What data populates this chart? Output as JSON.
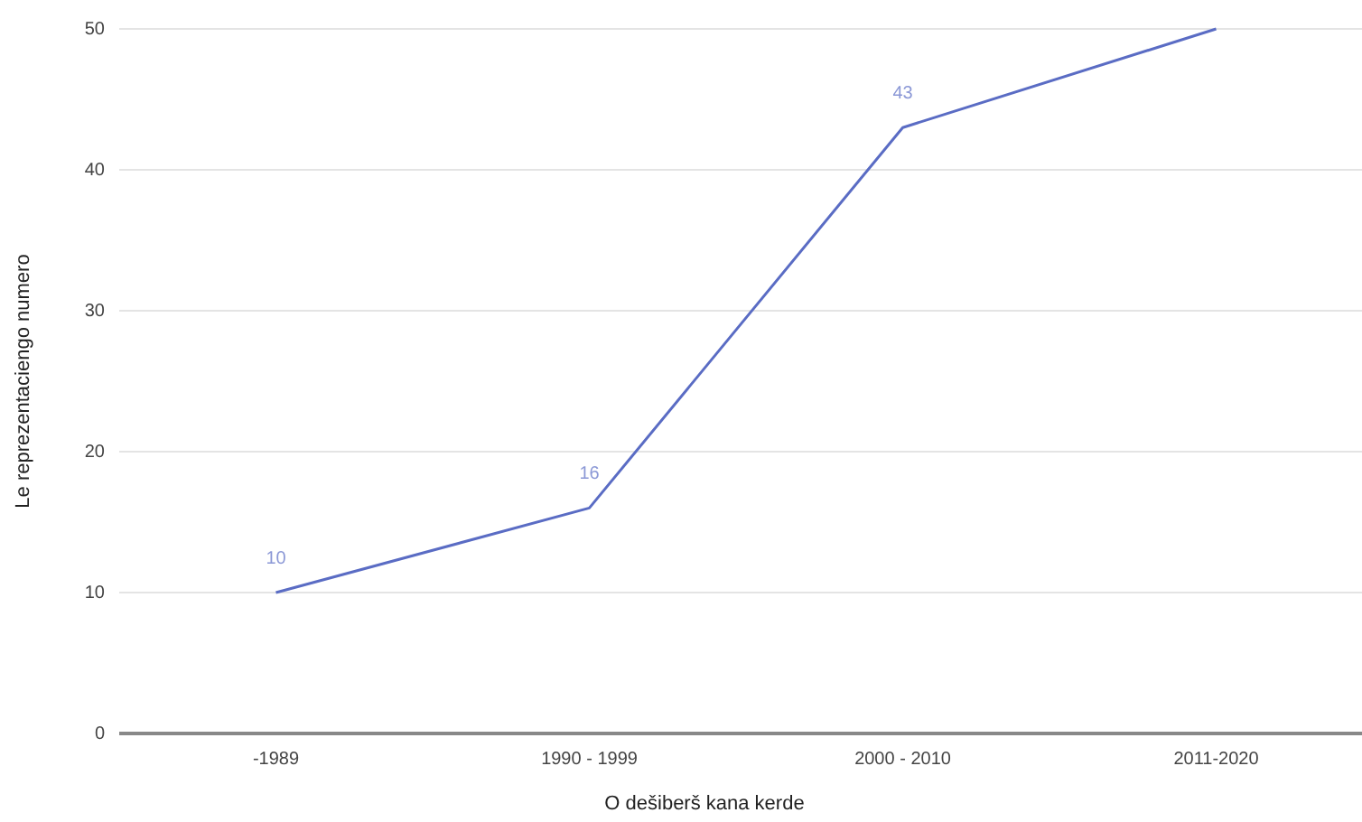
{
  "chart_data": {
    "type": "line",
    "xlabel": "O dešiberš kana kerde",
    "ylabel": "Le reprezentaciengo numero",
    "categories": [
      "-1989",
      "1990 - 1999",
      "2000 - 2010",
      "2011-2020"
    ],
    "series": [
      {
        "color": "#5a6cc4",
        "values": [
          10,
          16,
          43,
          50
        ],
        "value_labels": [
          "10",
          "16",
          "43",
          null
        ]
      }
    ],
    "ylim": [
      0,
      50
    ],
    "yticks": [
      0,
      10,
      20,
      30,
      40,
      50
    ],
    "grid": "y",
    "marker": "none",
    "line_style": "solid"
  }
}
